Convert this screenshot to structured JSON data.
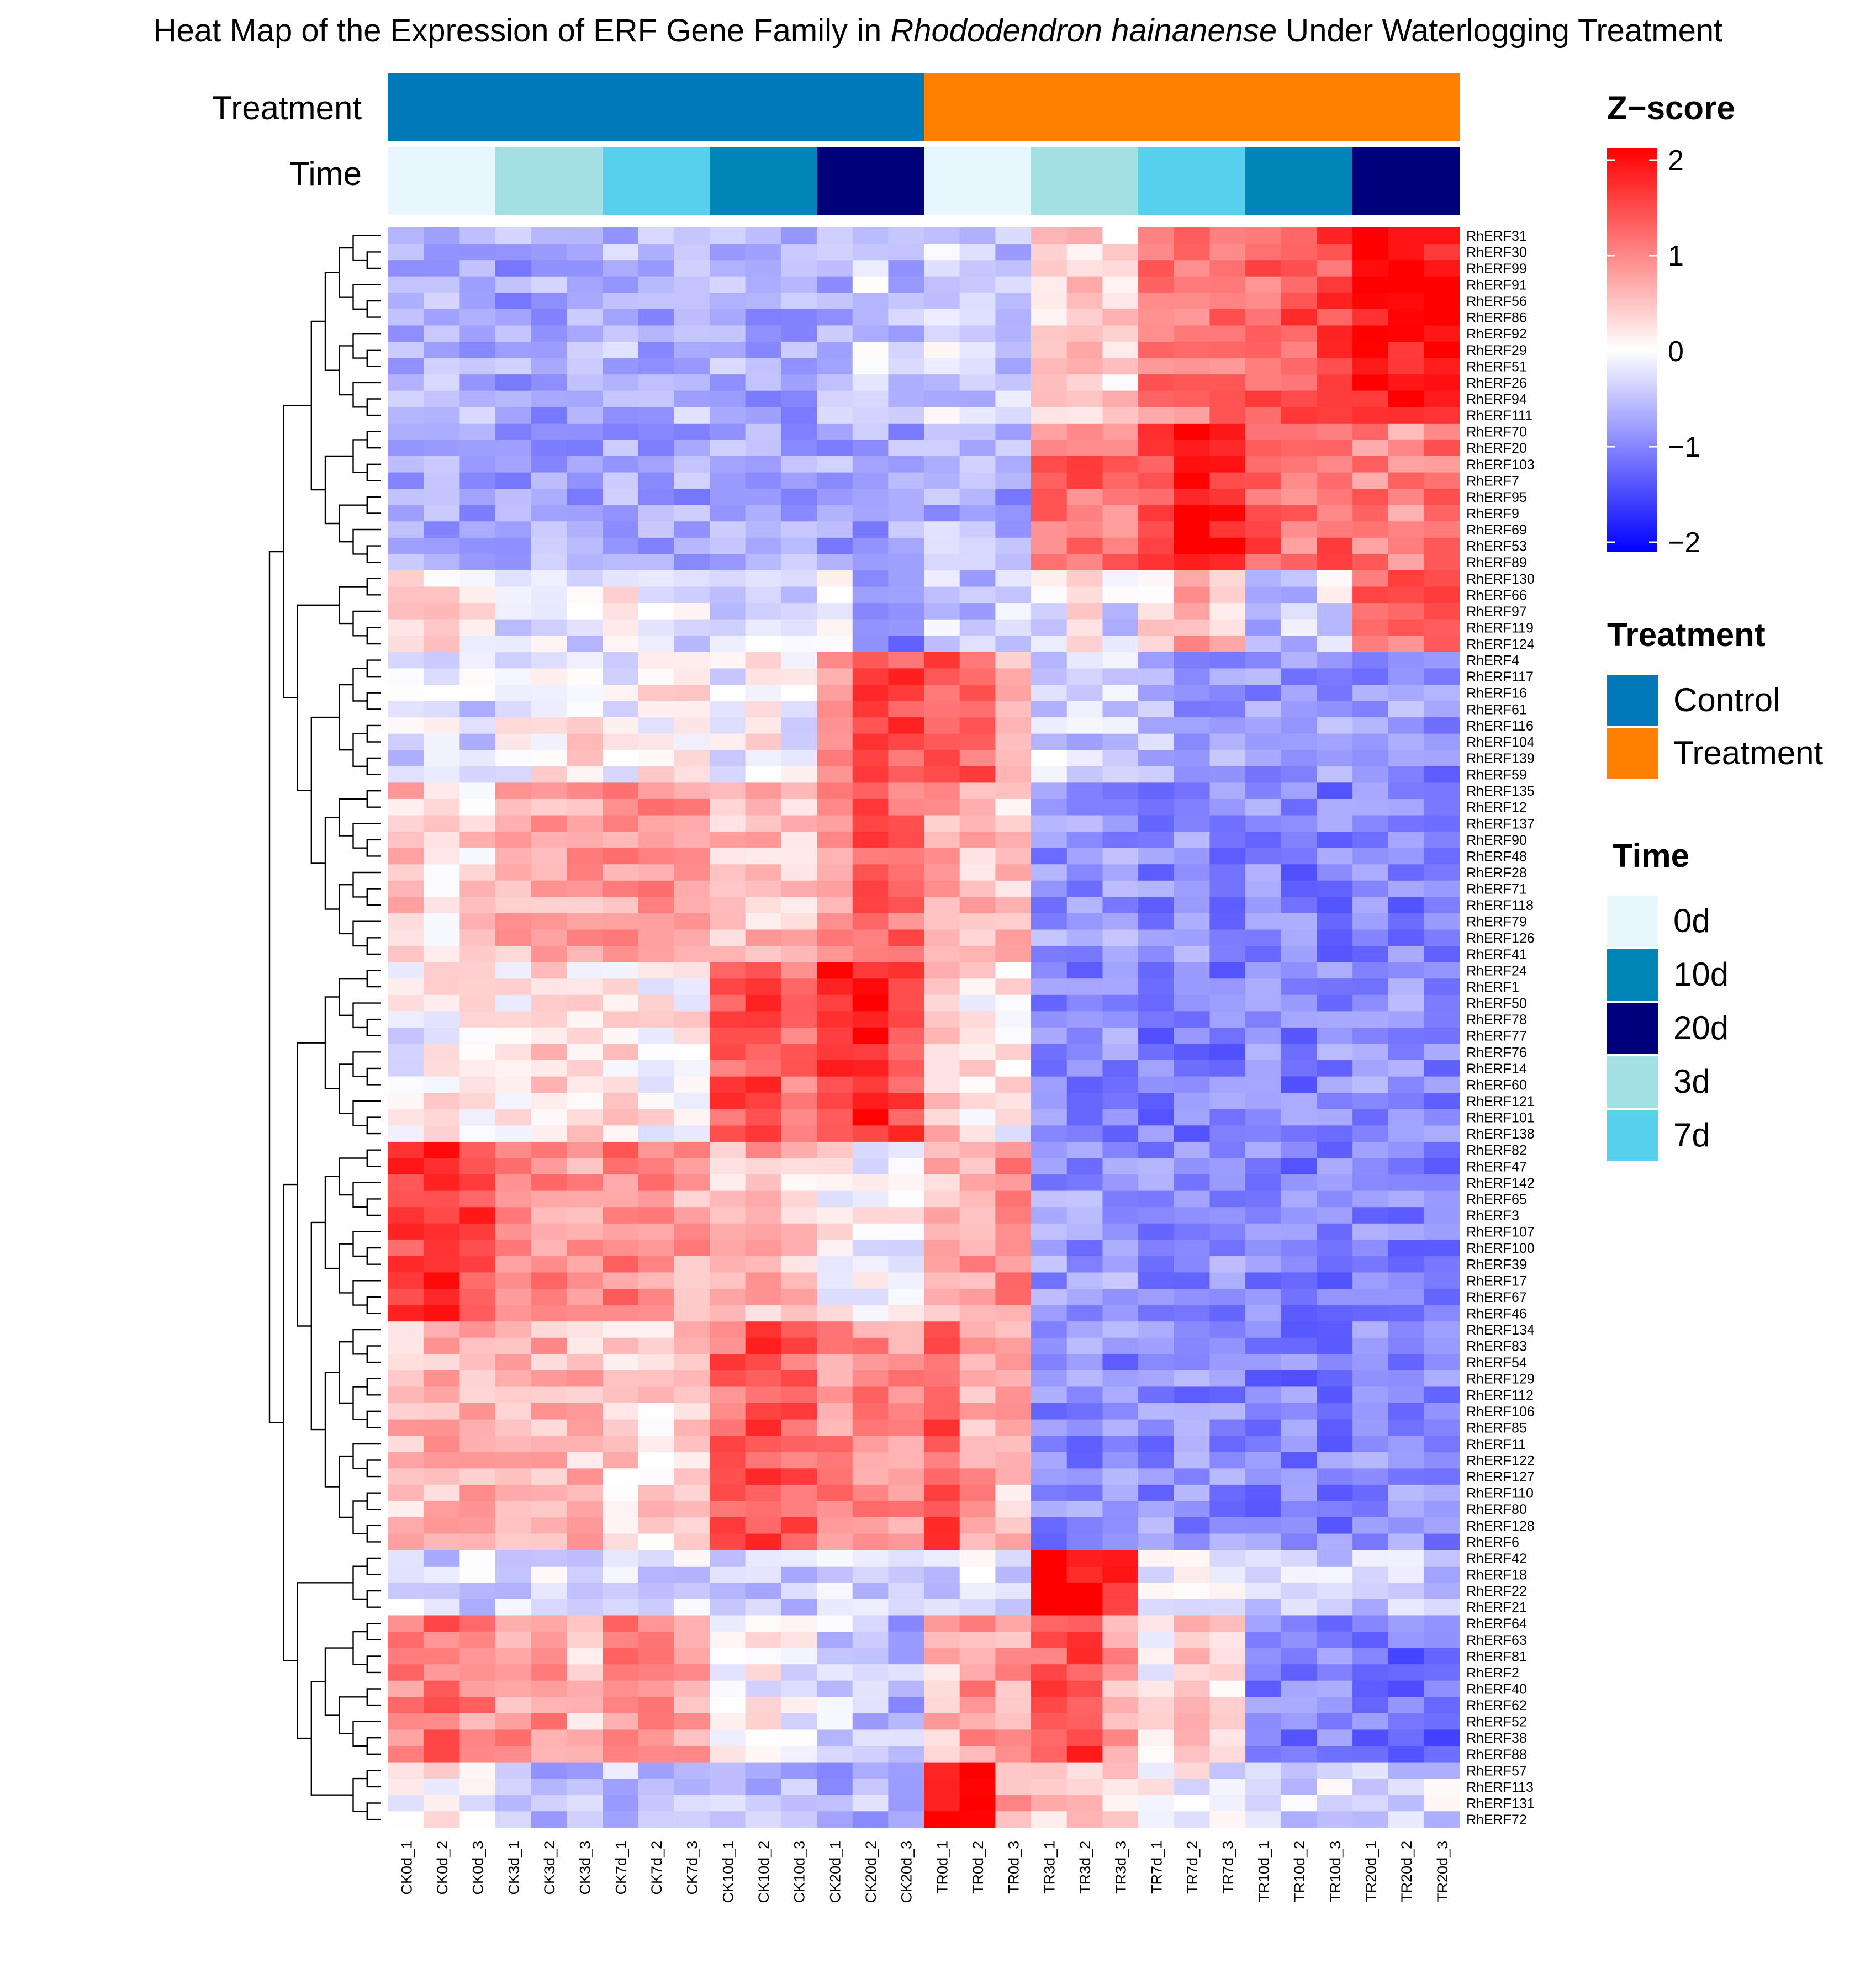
{
  "chart_data": {
    "type": "heatmap",
    "title_pre": "Heat Map of the Expression of ERF Gene Family in ",
    "title_italic": "Rhododendron hainanense",
    "title_post": " Under Waterlogging Treatment",
    "annotation_labels": {
      "treatment": "Treatment",
      "time": "Time"
    },
    "columns": [
      "CK0d_1",
      "CK0d_2",
      "CK0d_3",
      "CK3d_1",
      "CK3d_2",
      "CK3d_3",
      "CK7d_1",
      "CK7d_2",
      "CK7d_3",
      "CK10d_1",
      "CK10d_2",
      "CK10d_3",
      "CK20d_1",
      "CK20d_2",
      "CK20d_3",
      "TR0d_1",
      "TR0d_2",
      "TR0d_3",
      "TR3d_1",
      "TR3d_2",
      "TR3d_3",
      "TR7d_1",
      "TR7d_2",
      "TR7d_3",
      "TR10d_1",
      "TR10d_2",
      "TR10d_3",
      "TR20d_1",
      "TR20d_2",
      "TR20d_3"
    ],
    "column_treatment": [
      "Control",
      "Control",
      "Control",
      "Control",
      "Control",
      "Control",
      "Control",
      "Control",
      "Control",
      "Control",
      "Control",
      "Control",
      "Control",
      "Control",
      "Control",
      "Treatment",
      "Treatment",
      "Treatment",
      "Treatment",
      "Treatment",
      "Treatment",
      "Treatment",
      "Treatment",
      "Treatment",
      "Treatment",
      "Treatment",
      "Treatment",
      "Treatment",
      "Treatment",
      "Treatment"
    ],
    "column_time": [
      "0d",
      "0d",
      "0d",
      "3d",
      "3d",
      "3d",
      "7d",
      "7d",
      "7d",
      "10d",
      "10d",
      "10d",
      "20d",
      "20d",
      "20d",
      "0d",
      "0d",
      "0d",
      "3d",
      "3d",
      "3d",
      "7d",
      "7d",
      "7d",
      "10d",
      "10d",
      "10d",
      "20d",
      "20d",
      "20d"
    ],
    "rows": [
      "RhERF31",
      "RhERF30",
      "RhERF99",
      "RhERF91",
      "RhERF56",
      "RhERF86",
      "RhERF92",
      "RhERF29",
      "RhERF51",
      "RhERF26",
      "RhERF94",
      "RhERF111",
      "RhERF70",
      "RhERF20",
      "RhERF103",
      "RhERF7",
      "RhERF95",
      "RhERF9",
      "RhERF69",
      "RhERF53",
      "RhERF89",
      "RhERF130",
      "RhERF66",
      "RhERF97",
      "RhERF119",
      "RhERF124",
      "RhERF4",
      "RhERF117",
      "RhERF16",
      "RhERF61",
      "RhERF116",
      "RhERF104",
      "RhERF139",
      "RhERF59",
      "RhERF135",
      "RhERF12",
      "RhERF137",
      "RhERF90",
      "RhERF48",
      "RhERF28",
      "RhERF71",
      "RhERF118",
      "RhERF79",
      "RhERF126",
      "RhERF41",
      "RhERF24",
      "RhERF1",
      "RhERF50",
      "RhERF78",
      "RhERF77",
      "RhERF76",
      "RhERF14",
      "RhERF60",
      "RhERF121",
      "RhERF101",
      "RhERF138",
      "RhERF82",
      "RhERF47",
      "RhERF142",
      "RhERF65",
      "RhERF3",
      "RhERF107",
      "RhERF100",
      "RhERF39",
      "RhERF17",
      "RhERF67",
      "RhERF46",
      "RhERF134",
      "RhERF83",
      "RhERF54",
      "RhERF129",
      "RhERF112",
      "RhERF106",
      "RhERF85",
      "RhERF11",
      "RhERF122",
      "RhERF127",
      "RhERF110",
      "RhERF80",
      "RhERF128",
      "RhERF6",
      "RhERF42",
      "RhERF18",
      "RhERF22",
      "RhERF21",
      "RhERF64",
      "RhERF63",
      "RhERF81",
      "RhERF2",
      "RhERF40",
      "RhERF62",
      "RhERF52",
      "RhERF38",
      "RhERF88",
      "RhERF57",
      "RhERF113",
      "RhERF131",
      "RhERF72"
    ],
    "blocks": [
      {
        "rows": [
          0,
          12
        ],
        "cols": [
          -0.7,
          -0.6,
          -0.6,
          -0.7,
          -0.7,
          -0.7,
          -0.6,
          -0.6,
          -0.6,
          -0.6,
          -0.7,
          -0.7,
          -0.6,
          -0.3,
          -0.5,
          -0.3,
          -0.4,
          -0.5,
          0.3,
          0.4,
          0.3,
          1.0,
          1.1,
          1.1,
          1.2,
          1.3,
          1.4,
          1.8,
          1.9,
          1.9
        ]
      },
      {
        "rows": [
          12,
          21
        ],
        "cols": [
          -0.7,
          -0.7,
          -0.7,
          -0.7,
          -0.7,
          -0.7,
          -0.7,
          -0.7,
          -0.7,
          -0.7,
          -0.7,
          -0.7,
          -0.7,
          -0.7,
          -0.7,
          -0.6,
          -0.6,
          -0.7,
          1.1,
          1.2,
          1.0,
          1.5,
          1.8,
          1.7,
          1.3,
          1.1,
          1.2,
          1.0,
          0.9,
          1.1
        ]
      },
      {
        "rows": [
          21,
          26
        ],
        "cols": [
          0.2,
          0.3,
          0.1,
          -0.3,
          -0.2,
          -0.3,
          0.1,
          -0.2,
          -0.2,
          -0.2,
          0.0,
          -0.3,
          -0.2,
          -0.6,
          -0.9,
          -0.4,
          -0.5,
          -0.3,
          -0.2,
          0.2,
          -0.3,
          0.2,
          0.8,
          0.4,
          -0.5,
          -0.4,
          -0.2,
          1.3,
          1.2,
          1.6
        ]
      },
      {
        "rows": [
          26,
          34
        ],
        "cols": [
          -0.3,
          -0.2,
          -0.3,
          0.0,
          0.1,
          0.2,
          -0.1,
          0.1,
          0.2,
          -0.1,
          0.1,
          -0.1,
          0.8,
          1.5,
          1.4,
          1.4,
          1.3,
          0.5,
          -0.3,
          -0.4,
          -0.4,
          -0.6,
          -0.7,
          -0.7,
          -0.8,
          -0.9,
          -0.8,
          -0.8,
          -0.8,
          -0.9
        ]
      },
      {
        "rows": [
          34,
          45
        ],
        "cols": [
          0.5,
          0.3,
          0.3,
          0.6,
          0.7,
          0.7,
          0.8,
          0.8,
          0.9,
          0.5,
          0.5,
          0.5,
          0.9,
          1.3,
          1.1,
          0.7,
          0.5,
          0.4,
          -0.8,
          -0.8,
          -0.8,
          -0.9,
          -0.9,
          -0.9,
          -0.9,
          -1.0,
          -1.0,
          -1.0,
          -1.0,
          -1.0
        ]
      },
      {
        "rows": [
          45,
          56
        ],
        "cols": [
          -0.1,
          0.1,
          0.2,
          0.2,
          0.3,
          0.2,
          0.2,
          0.1,
          0.1,
          1.3,
          1.4,
          1.1,
          1.6,
          1.8,
          1.4,
          0.5,
          0.2,
          0.1,
          -0.9,
          -0.9,
          -0.9,
          -1.0,
          -1.0,
          -1.0,
          -0.9,
          -1.0,
          -0.9,
          -0.9,
          -0.9,
          -0.9
        ]
      },
      {
        "rows": [
          56,
          67
        ],
        "cols": [
          1.5,
          1.6,
          1.5,
          0.8,
          0.9,
          0.8,
          1.0,
          0.8,
          0.7,
          0.5,
          0.6,
          0.4,
          0.1,
          0.0,
          0.0,
          0.5,
          0.7,
          0.9,
          -0.8,
          -0.8,
          -0.8,
          -0.9,
          -0.9,
          -0.9,
          -1.0,
          -1.0,
          -1.0,
          -0.9,
          -1.0,
          -1.0
        ]
      },
      {
        "rows": [
          67,
          81
        ],
        "cols": [
          0.5,
          0.6,
          0.6,
          0.6,
          0.6,
          0.5,
          0.3,
          0.3,
          0.4,
          1.2,
          1.4,
          1.3,
          0.9,
          0.9,
          0.8,
          1.3,
          0.7,
          0.5,
          -0.9,
          -0.9,
          -0.9,
          -0.9,
          -0.9,
          -0.9,
          -1.0,
          -1.0,
          -1.0,
          -0.9,
          -0.9,
          -1.0
        ]
      },
      {
        "rows": [
          81,
          85
        ],
        "cols": [
          -0.3,
          -0.3,
          -0.3,
          -0.3,
          -0.3,
          -0.3,
          -0.3,
          -0.3,
          -0.3,
          -0.4,
          -0.4,
          -0.4,
          -0.4,
          -0.4,
          -0.4,
          -0.3,
          -0.3,
          -0.3,
          1.9,
          1.9,
          1.8,
          -0.2,
          -0.2,
          -0.2,
          -0.3,
          -0.3,
          -0.3,
          -0.4,
          -0.4,
          -0.4
        ]
      },
      {
        "rows": [
          85,
          94
        ],
        "cols": [
          0.9,
          1.1,
          0.9,
          0.8,
          0.8,
          0.5,
          0.9,
          0.8,
          0.8,
          -0.1,
          0.0,
          -0.1,
          -0.4,
          -0.5,
          -0.6,
          0.5,
          0.8,
          0.7,
          1.3,
          1.5,
          0.7,
          0.0,
          0.4,
          0.2,
          -1.0,
          -1.0,
          -0.9,
          -1.1,
          -1.1,
          -1.2
        ]
      },
      {
        "rows": [
          94,
          98
        ],
        "cols": [
          0.0,
          0.2,
          0.0,
          -0.5,
          -0.5,
          -0.5,
          -0.5,
          -0.5,
          -0.5,
          -0.5,
          -0.5,
          -0.5,
          -0.6,
          -0.6,
          -0.6,
          1.8,
          1.9,
          0.8,
          0.4,
          0.3,
          0.2,
          0.0,
          0.0,
          -0.1,
          -0.2,
          -0.3,
          -0.3,
          -0.3,
          -0.3,
          -0.3
        ]
      }
    ],
    "color_scale": {
      "low": "#0000FF",
      "mid": "#FFFFFF",
      "high": "#FF0000",
      "min": -2,
      "max": 2
    },
    "treatment_colors": {
      "Control": "#0079B8",
      "Treatment": "#FF7F00"
    },
    "time_colors": {
      "0d": "#E8F6FE",
      "10d": "#0085B8",
      "20d": "#00007C",
      "3d": "#A2E0E4",
      "7d": "#56D0EC"
    },
    "legends": {
      "zscore": {
        "title": "Z−score",
        "ticks": [
          {
            "v": 2,
            "label": "2"
          },
          {
            "v": 1,
            "label": "1"
          },
          {
            "v": 0,
            "label": "0"
          },
          {
            "v": -1,
            "label": "−1"
          },
          {
            "v": -2,
            "label": "−2"
          }
        ]
      },
      "treatment": {
        "title": "Treatment",
        "items": [
          "Control",
          "Treatment"
        ]
      },
      "time": {
        "title": "Time",
        "items": [
          "0d",
          "10d",
          "20d",
          "3d",
          "7d"
        ]
      }
    },
    "dendrogram": "row clustering tree (left side)"
  }
}
